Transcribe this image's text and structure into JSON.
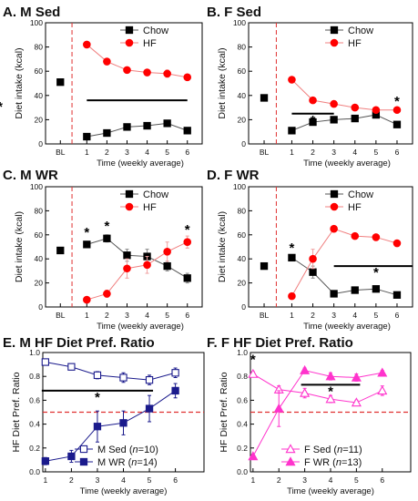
{
  "chart_data": [
    {
      "id": "A",
      "type": "line",
      "title": "A. M Sed",
      "xlabel": "Time (weekly average)",
      "ylabel": "Diet intake (kcal)",
      "ylim": [
        0,
        100
      ],
      "yticks": [
        0,
        20,
        40,
        60,
        80,
        100
      ],
      "xticks": [
        "BL",
        "1",
        "2",
        "3",
        "4",
        "5",
        "6"
      ],
      "baseline": {
        "label": "BL",
        "value": 51
      },
      "series": [
        {
          "name": "Chow",
          "color": "#000000",
          "marker": "square",
          "x": [
            1,
            2,
            3,
            4,
            5,
            6
          ],
          "values": [
            6,
            9,
            14,
            15,
            17,
            11
          ],
          "err": [
            0,
            1,
            1,
            1,
            2,
            2
          ]
        },
        {
          "name": "HF",
          "color": "#ff0000",
          "marker": "circle",
          "x": [
            1,
            2,
            3,
            4,
            5,
            6
          ],
          "values": [
            82,
            68,
            61,
            59,
            58,
            55
          ],
          "err": [
            0,
            2,
            2,
            2,
            3,
            2
          ]
        }
      ],
      "annotations": [
        {
          "text": "*",
          "x_from": 1,
          "x_to": 6,
          "y": 36,
          "label_at": 3.5
        }
      ],
      "legend": "top-right"
    },
    {
      "id": "B",
      "type": "line",
      "title": "B. F Sed",
      "xlabel": "Time (weekly average)",
      "ylabel": "Diet intake (kcal)",
      "ylim": [
        0,
        100
      ],
      "yticks": [
        0,
        20,
        40,
        60,
        80,
        100
      ],
      "xticks": [
        "BL",
        "1",
        "2",
        "3",
        "4",
        "5",
        "6"
      ],
      "baseline": {
        "label": "BL",
        "value": 38
      },
      "series": [
        {
          "name": "Chow",
          "color": "#000000",
          "marker": "square",
          "x": [
            1,
            2,
            3,
            4,
            5,
            6
          ],
          "values": [
            11,
            18,
            20,
            21,
            24,
            16
          ],
          "err": [
            0,
            1,
            1,
            1,
            1,
            1
          ]
        },
        {
          "name": "HF",
          "color": "#ff0000",
          "marker": "circle",
          "x": [
            1,
            2,
            3,
            4,
            5,
            6
          ],
          "values": [
            53,
            36,
            33,
            30,
            28,
            28
          ],
          "err": [
            0,
            1,
            1,
            1,
            1,
            1
          ]
        }
      ],
      "annotations": [
        {
          "text": "*",
          "x_from": 1,
          "x_to": 3,
          "y": 25,
          "label_at": 2
        },
        {
          "text": "*",
          "x": 6,
          "y": 33
        }
      ],
      "legend": "top-right"
    },
    {
      "id": "C",
      "type": "line",
      "title": "C. M WR",
      "xlabel": "Time (weekly average)",
      "ylabel": "Diet intake (kcal)",
      "ylim": [
        0,
        100
      ],
      "yticks": [
        0,
        20,
        40,
        60,
        80,
        100
      ],
      "xticks": [
        "BL",
        "1",
        "2",
        "3",
        "4",
        "5",
        "6"
      ],
      "baseline": {
        "label": "BL",
        "value": 47
      },
      "series": [
        {
          "name": "Chow",
          "color": "#000000",
          "marker": "square",
          "x": [
            1,
            2,
            3,
            4,
            5,
            6
          ],
          "values": [
            52,
            57,
            43,
            42,
            34,
            24
          ],
          "err": [
            2,
            3,
            5,
            6,
            4,
            4
          ]
        },
        {
          "name": "HF",
          "color": "#ff0000",
          "marker": "circle",
          "x": [
            1,
            2,
            3,
            4,
            5,
            6
          ],
          "values": [
            6,
            11,
            32,
            35,
            46,
            54
          ],
          "err": [
            1,
            3,
            8,
            7,
            8,
            5
          ]
        }
      ],
      "annotations": [
        {
          "text": "*",
          "x": 1,
          "y": 60
        },
        {
          "text": "*",
          "x": 2,
          "y": 65
        },
        {
          "text": "*",
          "x": 6,
          "y": 62
        }
      ],
      "legend": "top-right"
    },
    {
      "id": "D",
      "type": "line",
      "title": "D. F WR",
      "xlabel": "Time (weekly average)",
      "ylabel": "Diet intake (kcal)",
      "ylim": [
        0,
        100
      ],
      "yticks": [
        0,
        20,
        40,
        60,
        80,
        100
      ],
      "xticks": [
        "BL",
        "1",
        "2",
        "3",
        "4",
        "5",
        "6"
      ],
      "baseline": {
        "label": "BL",
        "value": 34
      },
      "series": [
        {
          "name": "Chow",
          "color": "#000000",
          "marker": "square",
          "x": [
            1,
            2,
            3,
            4,
            5,
            6
          ],
          "values": [
            41,
            29,
            11,
            14,
            15,
            10
          ],
          "err": [
            2,
            5,
            2,
            2,
            2,
            1
          ]
        },
        {
          "name": "HF",
          "color": "#ff0000",
          "marker": "circle",
          "x": [
            1,
            2,
            3,
            4,
            5,
            6
          ],
          "values": [
            9,
            40,
            65,
            59,
            58,
            53
          ],
          "err": [
            1,
            8,
            2,
            2,
            2,
            2
          ]
        }
      ],
      "annotations": [
        {
          "text": "*",
          "x": 1,
          "y": 47
        },
        {
          "text": "*",
          "x_from": 3,
          "x_to": 7,
          "y": 34,
          "label_at": 5
        }
      ],
      "legend": "top-right"
    },
    {
      "id": "E",
      "type": "line",
      "title": "E. M HF Diet Pref. Ratio",
      "xlabel": "Time (weekly average)",
      "ylabel": "HF Diet Pref. Ratio",
      "ylim": [
        0,
        1.0
      ],
      "yticks": [
        0,
        0.2,
        0.4,
        0.6,
        0.8,
        1.0
      ],
      "xticks": [
        "1",
        "2",
        "3",
        "4",
        "5",
        "6"
      ],
      "reference_line": 0.5,
      "series": [
        {
          "name": "M Sed (n=10)",
          "name_prefix": "M Sed (",
          "name_italic": "n",
          "name_suffix": "=10)",
          "color": "#1a1a8c",
          "marker": "square-open",
          "x": [
            1,
            2,
            3,
            4,
            5,
            6
          ],
          "values": [
            0.92,
            0.88,
            0.81,
            0.79,
            0.77,
            0.83
          ],
          "err": [
            0.01,
            0.02,
            0.03,
            0.04,
            0.04,
            0.04
          ]
        },
        {
          "name": "M WR (n=14)",
          "name_prefix": "M WR (",
          "name_italic": "n",
          "name_suffix": "=14)",
          "color": "#1a1a8c",
          "marker": "square",
          "x": [
            1,
            2,
            3,
            4,
            5,
            6
          ],
          "values": [
            0.09,
            0.13,
            0.38,
            0.41,
            0.53,
            0.68
          ],
          "err": [
            0.03,
            0.05,
            0.13,
            0.1,
            0.11,
            0.06
          ]
        }
      ],
      "annotations": [
        {
          "text": "*",
          "x_from": 1,
          "x_to": 5,
          "y": 0.68,
          "label_at": 3
        }
      ],
      "legend": "bottom-right"
    },
    {
      "id": "F",
      "type": "line",
      "title": "F. F HF Diet Pref. Ratio",
      "xlabel": "Time (weekly average)",
      "ylabel": "HF Diet Pref. Ratio",
      "ylim": [
        0,
        1.0
      ],
      "yticks": [
        0,
        0.2,
        0.4,
        0.6,
        0.8,
        1.0
      ],
      "xticks": [
        "1",
        "2",
        "3",
        "4",
        "5",
        "6"
      ],
      "reference_line": 0.5,
      "series": [
        {
          "name": "F Sed (n=11)",
          "name_prefix": "F Sed (",
          "name_italic": "n",
          "name_suffix": "=11)",
          "color": "#ff33cc",
          "marker": "triangle-open",
          "x": [
            1,
            2,
            3,
            4,
            5,
            6
          ],
          "values": [
            0.82,
            0.69,
            0.66,
            0.61,
            0.58,
            0.68
          ],
          "err": [
            0.02,
            0.03,
            0.04,
            0.03,
            0.02,
            0.04
          ]
        },
        {
          "name": "F WR (n=13)",
          "name_prefix": "F WR (",
          "name_italic": "n",
          "name_suffix": "=13)",
          "color": "#ff33cc",
          "marker": "triangle",
          "x": [
            1,
            2,
            3,
            4,
            5,
            6
          ],
          "values": [
            0.13,
            0.53,
            0.85,
            0.8,
            0.79,
            0.83
          ],
          "err": [
            0.01,
            0.15,
            0.02,
            0.03,
            0.03,
            0.02
          ]
        }
      ],
      "annotations": [
        {
          "text": "*",
          "x": 1,
          "y": 0.92
        },
        {
          "text": "*",
          "x_from": 3,
          "x_to": 5,
          "y": 0.73,
          "label_at": 4
        }
      ],
      "legend": "bottom-right"
    }
  ]
}
